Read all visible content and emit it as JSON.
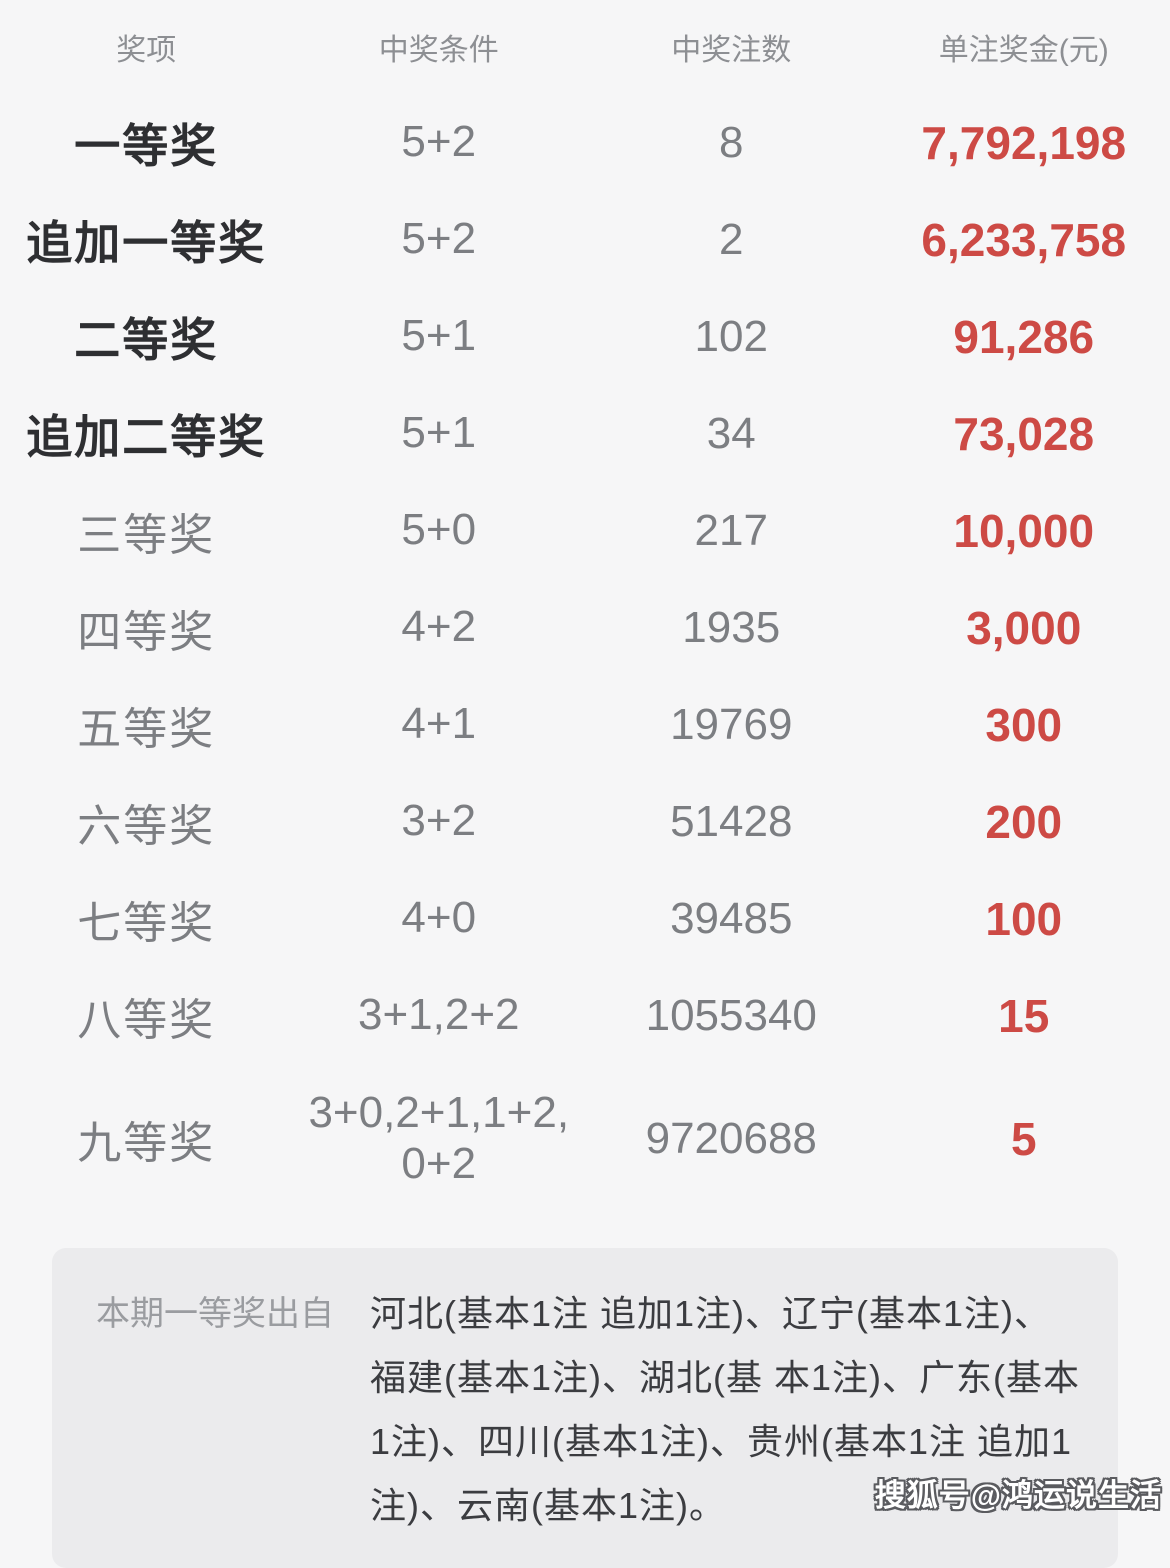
{
  "table": {
    "headers": [
      "奖项",
      "中奖条件",
      "中奖注数",
      "单注奖金(元)"
    ],
    "rows": [
      {
        "prize": "一等奖",
        "condition": "5+2",
        "count": "8",
        "amount": "7,792,198"
      },
      {
        "prize": "追加一等奖",
        "condition": "5+2",
        "count": "2",
        "amount": "6,233,758"
      },
      {
        "prize": "二等奖",
        "condition": "5+1",
        "count": "102",
        "amount": "91,286"
      },
      {
        "prize": "追加二等奖",
        "condition": "5+1",
        "count": "34",
        "amount": "73,028"
      },
      {
        "prize": "三等奖",
        "condition": "5+0",
        "count": "217",
        "amount": "10,000"
      },
      {
        "prize": "四等奖",
        "condition": "4+2",
        "count": "1935",
        "amount": "3,000"
      },
      {
        "prize": "五等奖",
        "condition": "4+1",
        "count": "19769",
        "amount": "300"
      },
      {
        "prize": "六等奖",
        "condition": "3+2",
        "count": "51428",
        "amount": "200"
      },
      {
        "prize": "七等奖",
        "condition": "4+0",
        "count": "39485",
        "amount": "100"
      },
      {
        "prize": "八等奖",
        "condition": "3+1,2+2",
        "count": "1055340",
        "amount": "15"
      },
      {
        "prize": "九等奖",
        "condition": "3+0,2+1,1+2,\n0+2",
        "count": "9720688",
        "amount": "5"
      }
    ]
  },
  "footer": {
    "label": "本期一等奖出自",
    "text": "河北(基本1注 追加1注)、辽宁(基本1注)、福建(基本1注)、湖北(基 本1注)、广东(基本1注)、四川(基本1注)、贵州(基本1注 追加1注)、云南(基本1注)。"
  },
  "watermark": "搜狐号@鸿运说生活",
  "colors": {
    "amount_red": "#cd4a45",
    "prize_dark": "#2e2f32",
    "body_gray": "#7c7e82",
    "header_gray": "#8d8f93",
    "panel_bg": "#ebebed",
    "page_bg": "#f6f6f7"
  }
}
